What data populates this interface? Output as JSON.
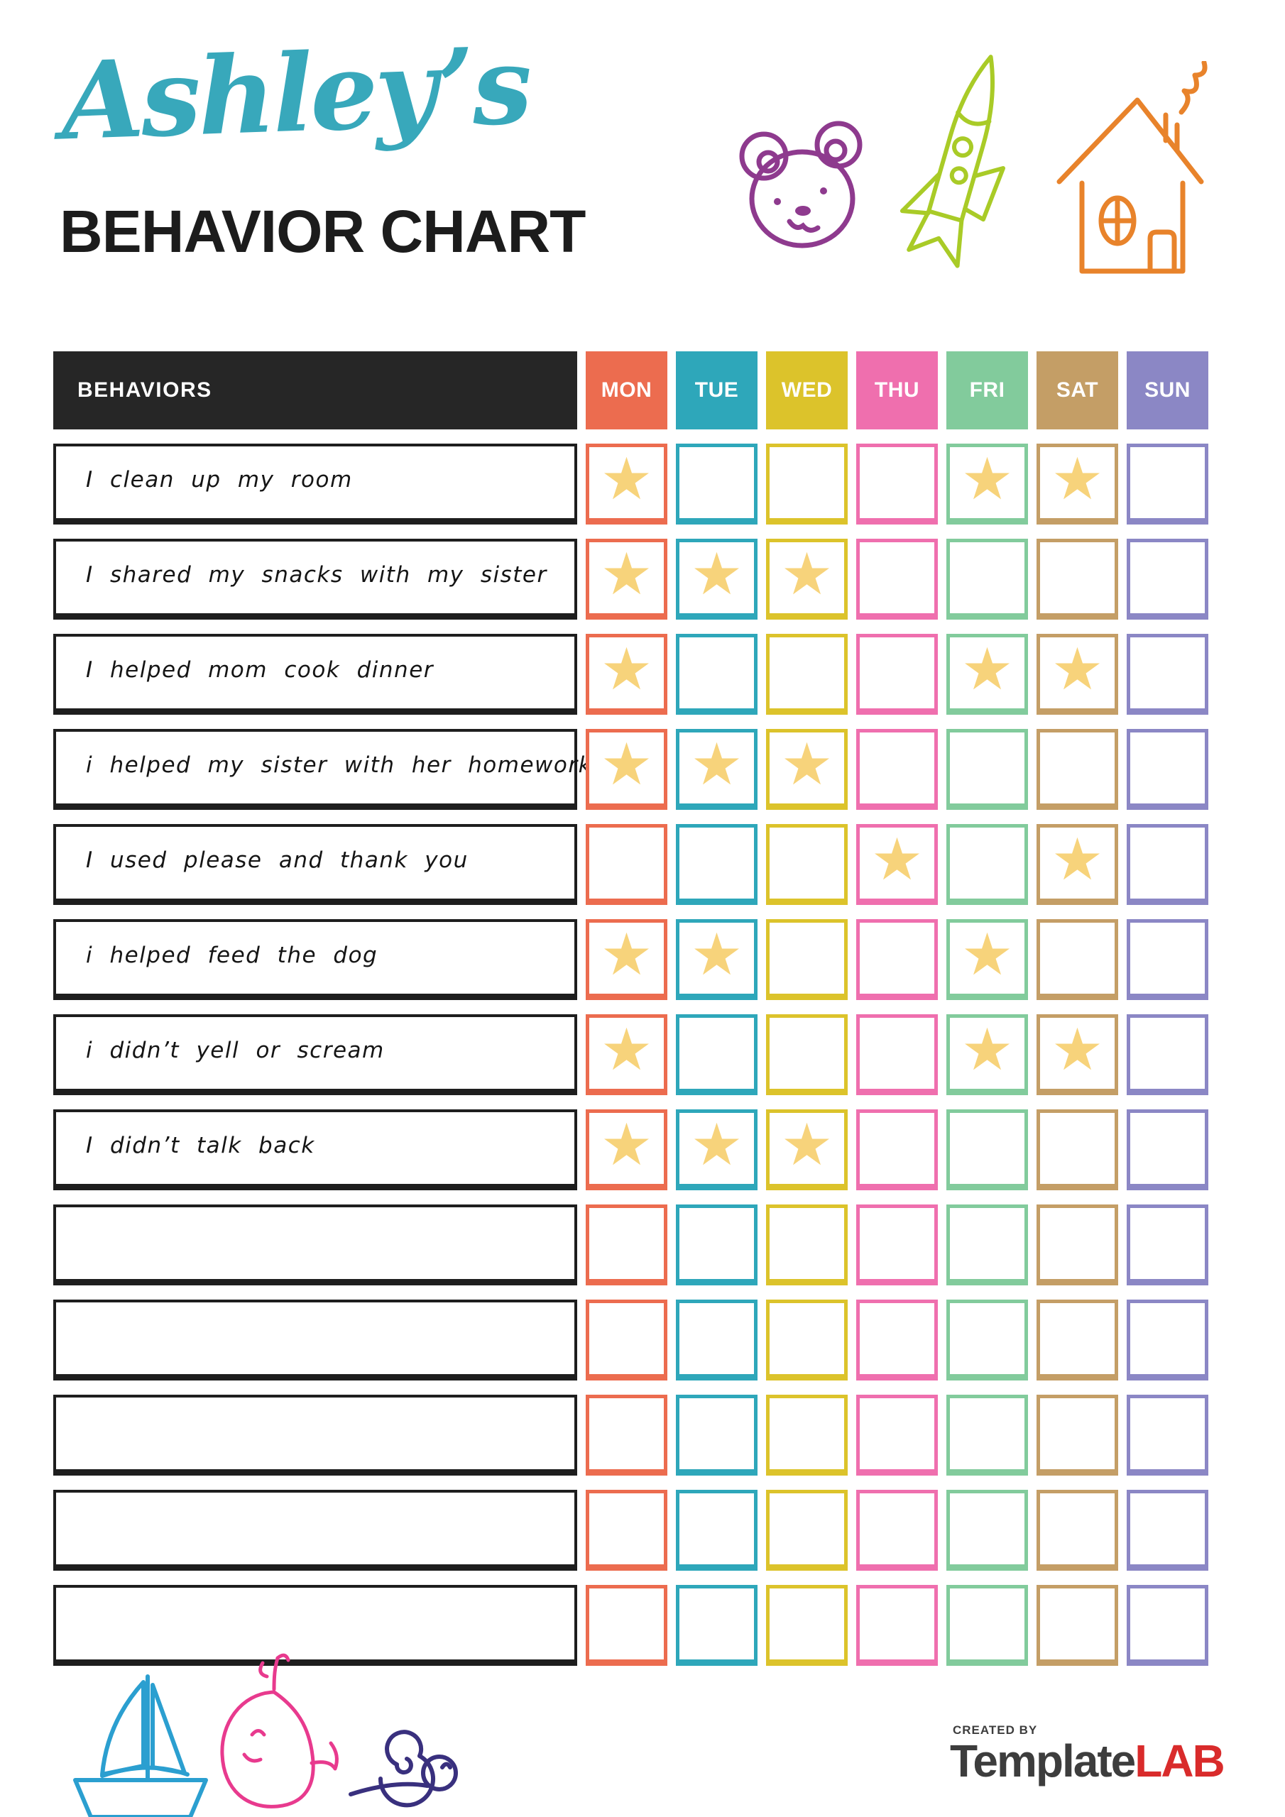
{
  "page": {
    "title_script": "Ashley’s",
    "title_main": "BEHAVIOR CHART"
  },
  "theme": {
    "title_script_color": "#38A8BB",
    "header_bg": "#262626",
    "star_color": "#F7D37B"
  },
  "doodles": {
    "bear_color": "#8E3A8E",
    "rocket_color": "#A9CB27",
    "house_color": "#E8832B",
    "sailboat_color": "#2B9FD0",
    "whale_color": "#E83A8E",
    "snail_color": "#39307E"
  },
  "table": {
    "behaviors_label": "BEHAVIORS",
    "star_glyph": "★",
    "days": [
      {
        "label": "MON",
        "color": "#EC6C4F"
      },
      {
        "label": "TUE",
        "color": "#2EA7BA"
      },
      {
        "label": "WED",
        "color": "#DCC32B"
      },
      {
        "label": "THU",
        "color": "#EF6FAE"
      },
      {
        "label": "FRI",
        "color": "#82CB9C"
      },
      {
        "label": "SAT",
        "color": "#C49E66"
      },
      {
        "label": "SUN",
        "color": "#8B87C5"
      }
    ],
    "rows": [
      {
        "behavior": "I clean up my room",
        "stars": [
          1,
          0,
          0,
          0,
          1,
          1,
          0
        ]
      },
      {
        "behavior": "I shared my snacks with my sister",
        "stars": [
          1,
          1,
          1,
          0,
          0,
          0,
          0
        ]
      },
      {
        "behavior": "I helped mom cook dinner",
        "stars": [
          1,
          0,
          0,
          0,
          1,
          1,
          0
        ]
      },
      {
        "behavior": "i helped my sister with her homework",
        "stars": [
          1,
          1,
          1,
          0,
          0,
          0,
          0
        ]
      },
      {
        "behavior": "I used please and thank you",
        "stars": [
          0,
          0,
          0,
          1,
          0,
          1,
          0
        ]
      },
      {
        "behavior": "i helped feed the dog",
        "stars": [
          1,
          1,
          0,
          0,
          1,
          0,
          0
        ]
      },
      {
        "behavior": "i didn’t yell or scream",
        "stars": [
          1,
          0,
          0,
          0,
          1,
          1,
          0
        ]
      },
      {
        "behavior": "I didn’t talk back",
        "stars": [
          1,
          1,
          1,
          0,
          0,
          0,
          0
        ]
      },
      {
        "behavior": "",
        "stars": [
          0,
          0,
          0,
          0,
          0,
          0,
          0
        ]
      },
      {
        "behavior": "",
        "stars": [
          0,
          0,
          0,
          0,
          0,
          0,
          0
        ]
      },
      {
        "behavior": "",
        "stars": [
          0,
          0,
          0,
          0,
          0,
          0,
          0
        ]
      },
      {
        "behavior": "",
        "stars": [
          0,
          0,
          0,
          0,
          0,
          0,
          0
        ]
      },
      {
        "behavior": "",
        "stars": [
          0,
          0,
          0,
          0,
          0,
          0,
          0
        ]
      }
    ]
  },
  "footer": {
    "created_by": "CREATED BY",
    "brand_part1": "Template",
    "brand_part2": "LAB"
  }
}
